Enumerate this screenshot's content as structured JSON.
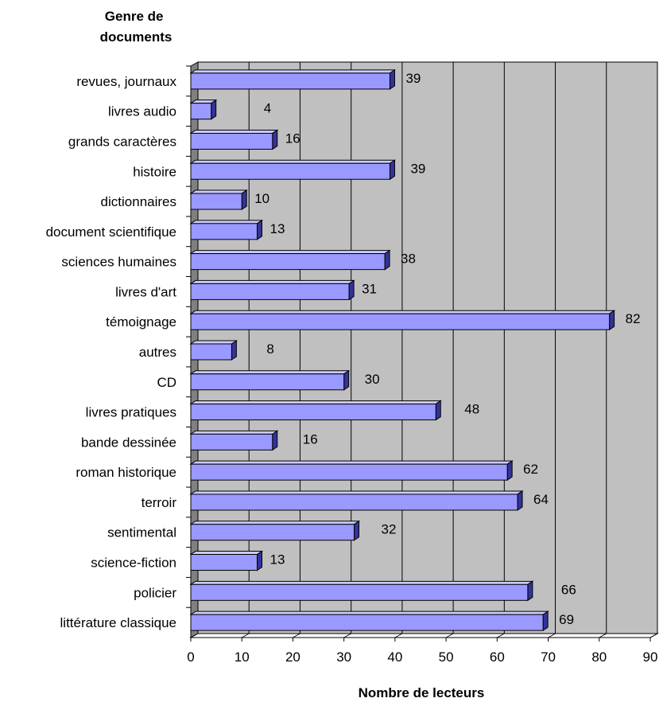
{
  "chart_data": {
    "type": "bar",
    "orientation": "horizontal",
    "style": "3d",
    "title": "",
    "ylabel": "Genre de documents",
    "xlabel": "Nombre de lecteurs",
    "categories": [
      "revues, journaux",
      "livres audio",
      "grands caractères",
      "histoire",
      "dictionnaires",
      "document scientifique",
      "sciences humaines",
      "livres d'art",
      "témoignage",
      "autres",
      "CD",
      "livres pratiques",
      "bande dessinée",
      "roman historique",
      "terroir",
      "sentimental",
      "science-fiction",
      "policier",
      "littérature classique"
    ],
    "values": [
      39,
      4,
      16,
      39,
      10,
      13,
      38,
      31,
      82,
      8,
      30,
      48,
      16,
      62,
      64,
      32,
      13,
      66,
      69
    ],
    "value_labels": [
      "39",
      "4",
      "16",
      "39",
      "10",
      "13",
      "38",
      "31",
      "82",
      "8",
      "30",
      "48",
      "16",
      "62",
      "64",
      "32",
      "13",
      "66",
      "69"
    ],
    "xlim": [
      0,
      90
    ],
    "xticks": [
      "0",
      "10",
      "20",
      "30",
      "40",
      "50",
      "60",
      "70",
      "80",
      "90"
    ],
    "grid": true,
    "legend": "none",
    "colors": {
      "bar_front": "#9999ff",
      "bar_top": "#ccccff",
      "bar_side": "#333399",
      "plot_back": "#c0c0c0",
      "plot_floor": "#808080",
      "grid": "#000000"
    }
  }
}
